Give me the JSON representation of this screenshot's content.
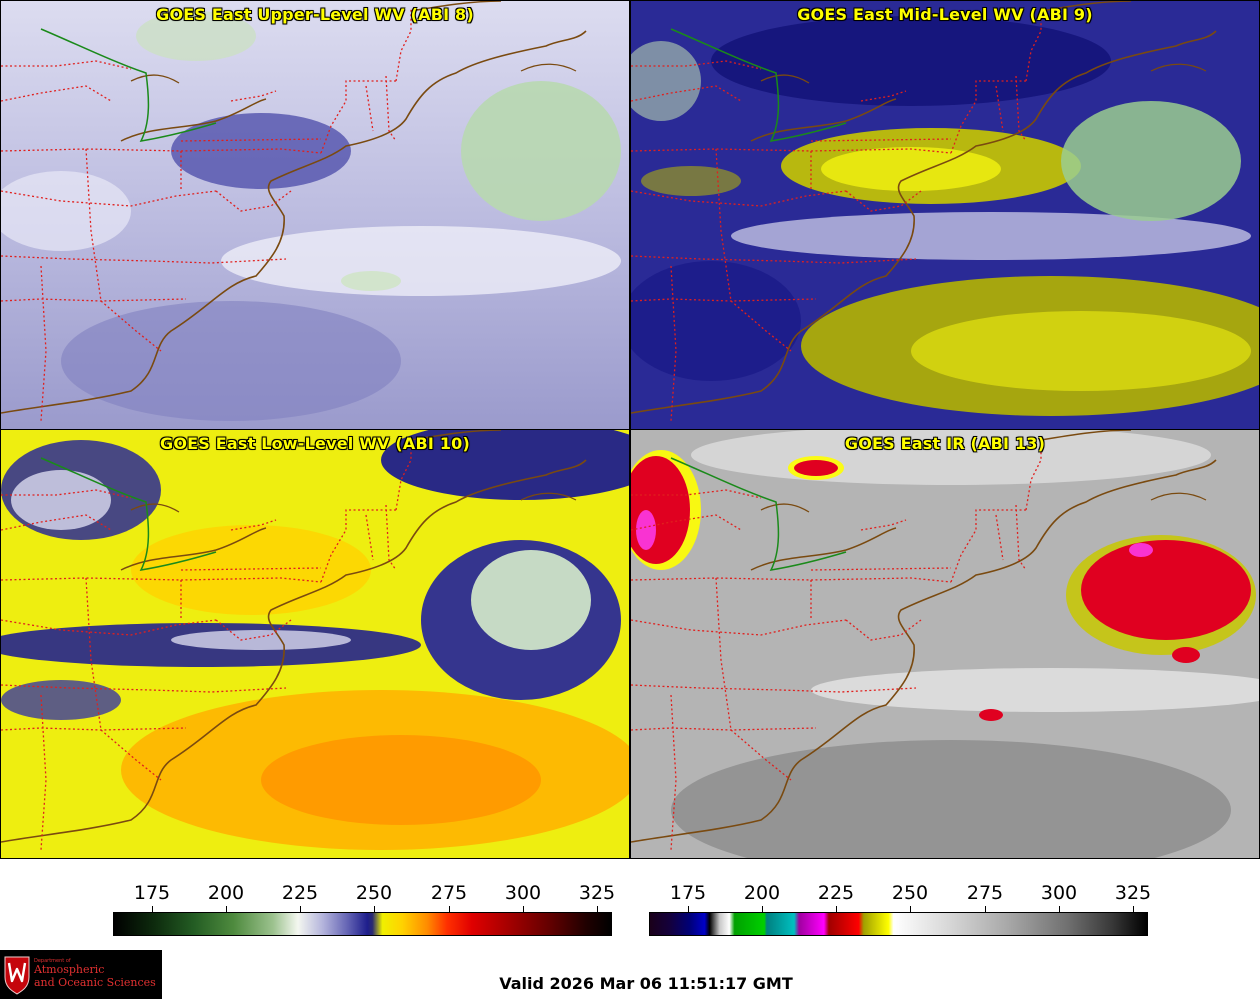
{
  "panels": [
    {
      "title": "GOES East Upper-Level WV (ABI 8)"
    },
    {
      "title": "GOES East Mid-Level WV (ABI 9)"
    },
    {
      "title": "GOES East Low-Level WV (ABI 10)"
    },
    {
      "title": "GOES East IR (ABI 13)"
    }
  ],
  "colorbars": [
    {
      "name": "wv-colorbar",
      "ticks": [
        "175",
        "200",
        "225",
        "250",
        "275",
        "300",
        "325"
      ],
      "tick_values": [
        175,
        200,
        225,
        250,
        275,
        300,
        325
      ],
      "range": [
        162,
        330
      ]
    },
    {
      "name": "ir-colorbar",
      "ticks": [
        "175",
        "200",
        "225",
        "250",
        "275",
        "300",
        "325"
      ],
      "tick_values": [
        175,
        200,
        225,
        250,
        275,
        300,
        325
      ],
      "range": [
        162,
        330
      ]
    }
  ],
  "logo": {
    "dept": "Department of",
    "line1": "Atmospheric",
    "line2": "and Oceanic Sciences"
  },
  "valid_time": "Valid 2026 Mar 06 11:51:17 GMT",
  "colors": {
    "title": "#ffff00",
    "state_borders": "#e0201e",
    "coastline": "#7a4a10",
    "intl_border": "#1a8a1a"
  }
}
